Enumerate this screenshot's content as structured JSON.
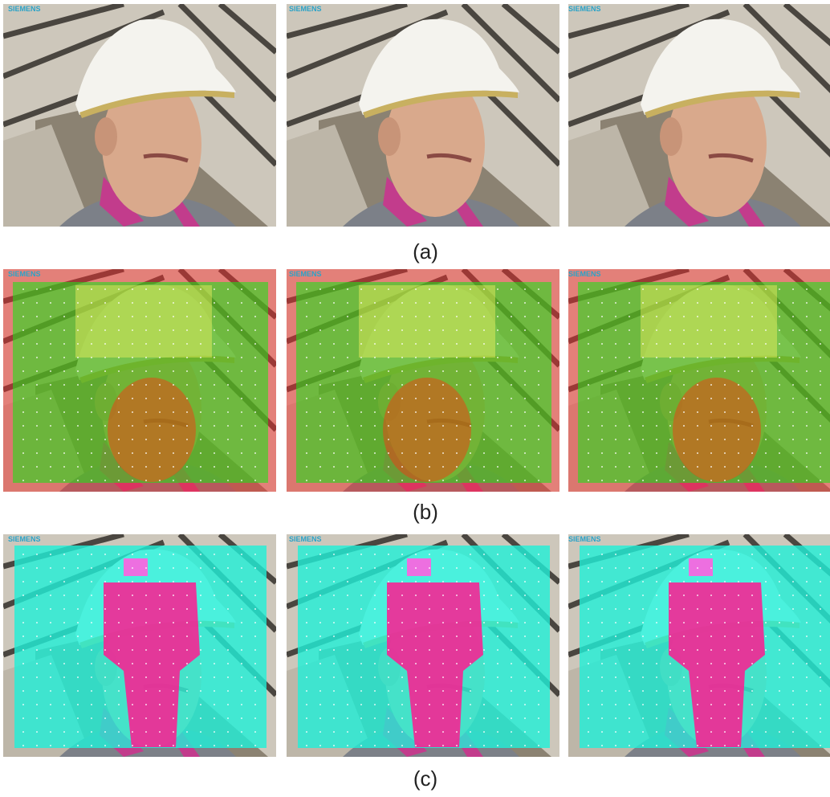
{
  "panels": [
    {
      "label": "(a)",
      "frames": [
        {
          "logo": "SIEMENS"
        },
        {
          "logo": "SIEMENS"
        },
        {
          "logo": "SIEMENS"
        }
      ]
    },
    {
      "label": "(b)",
      "frames": [
        {
          "logo": "SIEMENS"
        },
        {
          "logo": "SIEMENS"
        },
        {
          "logo": "SIEMENS"
        }
      ]
    },
    {
      "label": "(c)",
      "frames": [
        {
          "logo": "SIEMENS"
        },
        {
          "logo": "SIEMENS"
        },
        {
          "logo": "SIEMENS"
        }
      ]
    }
  ]
}
